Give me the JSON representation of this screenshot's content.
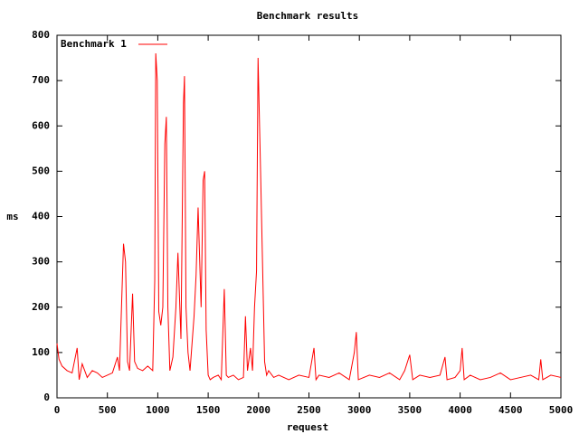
{
  "chart_data": {
    "type": "line",
    "title": "Benchmark results",
    "x_label": "request",
    "y_label": "ms",
    "x": [
      0,
      20,
      50,
      100,
      150,
      200,
      220,
      250,
      300,
      350,
      400,
      450,
      500,
      550,
      600,
      620,
      640,
      660,
      680,
      700,
      720,
      750,
      770,
      800,
      850,
      900,
      950,
      970,
      980,
      995,
      1010,
      1030,
      1050,
      1070,
      1085,
      1100,
      1120,
      1150,
      1180,
      1200,
      1230,
      1255,
      1265,
      1280,
      1300,
      1320,
      1360,
      1380,
      1400,
      1430,
      1450,
      1465,
      1480,
      1500,
      1520,
      1550,
      1600,
      1630,
      1660,
      1680,
      1700,
      1750,
      1800,
      1850,
      1870,
      1890,
      1920,
      1940,
      1960,
      1980,
      1995,
      2010,
      2020,
      2040,
      2060,
      2080,
      2100,
      2150,
      2200,
      2300,
      2400,
      2500,
      2550,
      2570,
      2600,
      2700,
      2800,
      2900,
      2950,
      2970,
      2990,
      3100,
      3200,
      3300,
      3400,
      3450,
      3500,
      3530,
      3600,
      3700,
      3800,
      3850,
      3870,
      3950,
      4000,
      4020,
      4040,
      4100,
      4200,
      4300,
      4400,
      4500,
      4600,
      4700,
      4780,
      4800,
      4820,
      4900,
      5000
    ],
    "series": [
      {
        "name": "Benchmark 1",
        "color": "#ff0000",
        "values": [
          120,
          85,
          70,
          60,
          55,
          110,
          40,
          75,
          45,
          60,
          55,
          45,
          50,
          55,
          90,
          60,
          200,
          340,
          300,
          80,
          60,
          230,
          80,
          65,
          60,
          70,
          60,
          260,
          760,
          700,
          190,
          160,
          200,
          560,
          620,
          200,
          60,
          90,
          200,
          320,
          130,
          650,
          710,
          200,
          100,
          60,
          180,
          270,
          420,
          200,
          480,
          500,
          150,
          50,
          40,
          45,
          50,
          40,
          240,
          50,
          45,
          50,
          40,
          45,
          180,
          60,
          110,
          60,
          200,
          280,
          750,
          600,
          500,
          290,
          80,
          50,
          60,
          45,
          50,
          40,
          50,
          45,
          110,
          40,
          50,
          45,
          55,
          40,
          100,
          145,
          40,
          50,
          45,
          55,
          40,
          60,
          95,
          40,
          50,
          45,
          50,
          90,
          40,
          45,
          60,
          110,
          40,
          50,
          40,
          45,
          55,
          40,
          45,
          50,
          40,
          85,
          40,
          50,
          45
        ]
      }
    ],
    "xlim": [
      0,
      5000
    ],
    "ylim": [
      0,
      800
    ],
    "xticks": [
      0,
      500,
      1000,
      1500,
      2000,
      2500,
      3000,
      3500,
      4000,
      4500,
      5000
    ],
    "yticks": [
      0,
      100,
      200,
      300,
      400,
      500,
      600,
      700,
      800
    ],
    "legend": "top-left"
  }
}
